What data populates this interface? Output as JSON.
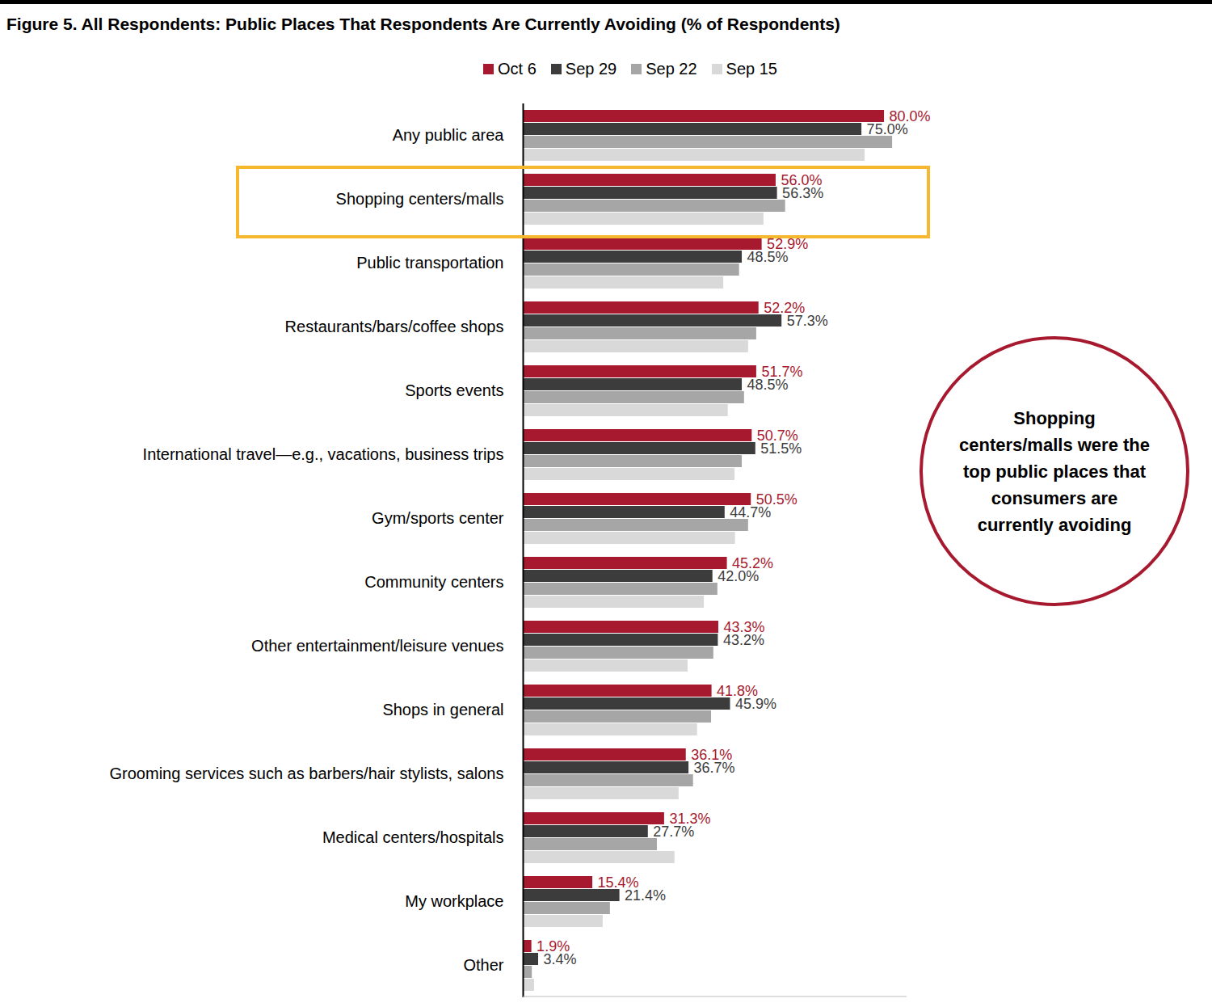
{
  "chart_data": {
    "type": "bar",
    "title": "Figure 5. All Respondents: Public Places That Respondents Are Currently Avoiding (% of Respondents)",
    "annotation": "Shopping centers/malls were the top public places that consumers are currently avoiding",
    "orientation": "horizontal",
    "data_labels": true,
    "tick_labels": "y",
    "grid": false,
    "legend": "top",
    "xlim": [
      0,
      85
    ],
    "categories": [
      "Any public area",
      "Shopping centers/malls",
      "Public transportation",
      "Restaurants/bars/coffee shops",
      "Sports events",
      "International travel—e.g., vacations, business trips",
      "Gym/sports center",
      "Community centers",
      "Other entertainment/leisure venues",
      "Shops in general",
      "Grooming services such as barbers/hair stylists, salons",
      "Medical centers/hospitals",
      "My workplace",
      "Other"
    ],
    "series": [
      {
        "name": "Oct 6",
        "color": "#a6192e",
        "values": [
          80.0,
          56.0,
          52.9,
          52.2,
          51.7,
          50.7,
          50.5,
          45.2,
          43.3,
          41.8,
          36.1,
          31.3,
          15.4,
          1.9
        ],
        "value_labels": [
          "80.0%",
          "56.0%",
          "52.9%",
          "52.2%",
          "51.7%",
          "50.7%",
          "50.5%",
          "45.2%",
          "43.3%",
          "41.8%",
          "36.1%",
          "31.3%",
          "15.4%",
          "1.9%"
        ]
      },
      {
        "name": "Sep 29",
        "color": "#3c3c3c",
        "values": [
          75.0,
          56.3,
          48.5,
          57.3,
          48.5,
          51.5,
          44.7,
          42.0,
          43.2,
          45.9,
          36.7,
          27.7,
          21.4,
          3.4
        ],
        "value_labels": [
          "75.0%",
          "56.3%",
          "48.5%",
          "57.3%",
          "48.5%",
          "51.5%",
          "44.7%",
          "42.0%",
          "43.2%",
          "45.9%",
          "36.7%",
          "27.7%",
          "21.4%",
          "3.4%"
        ]
      },
      {
        "name": "Sep 22",
        "color": "#a6a6a6",
        "values": [
          81.8,
          58.1,
          47.9,
          51.7,
          49.0,
          48.5,
          49.9,
          43.1,
          42.2,
          41.7,
          37.7,
          29.7,
          19.3,
          2.0
        ]
      },
      {
        "name": "Sep 15",
        "color": "#d9d9d9",
        "values": [
          75.7,
          53.3,
          44.4,
          49.9,
          45.4,
          46.9,
          47.0,
          40.1,
          36.5,
          38.6,
          34.5,
          33.6,
          17.7,
          2.5
        ]
      }
    ]
  }
}
